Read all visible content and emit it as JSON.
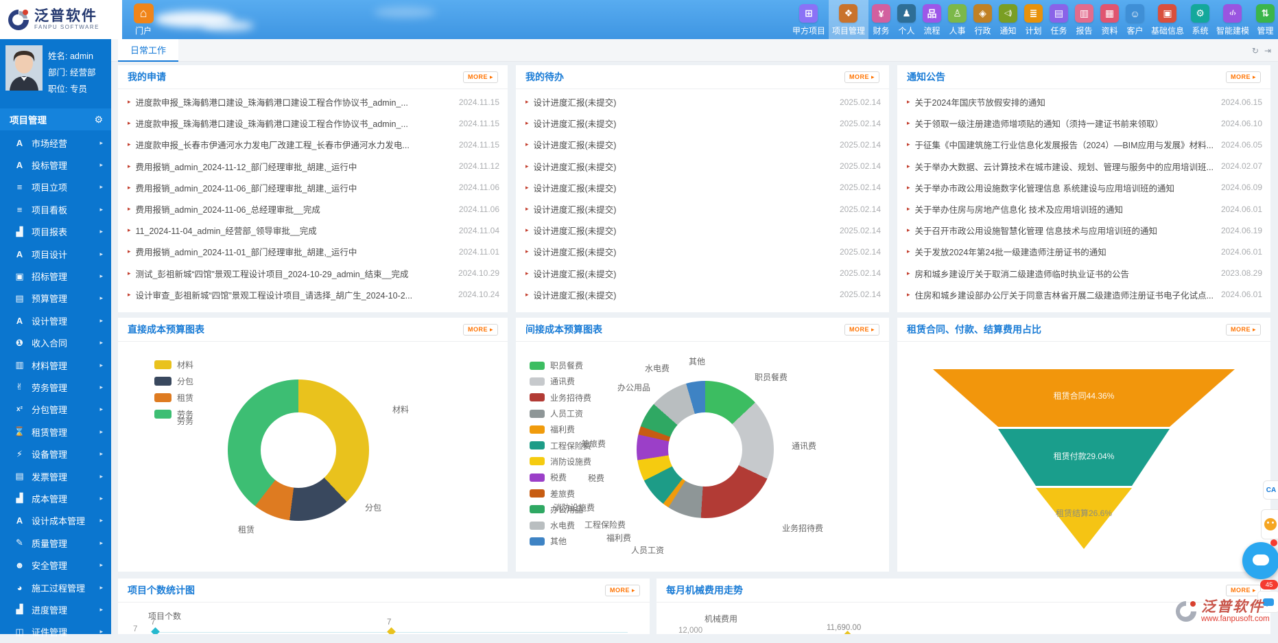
{
  "topbar": {
    "logo": {
      "brand": "泛普软件",
      "brand_sub": "FANPU SOFTWARE"
    },
    "portal": {
      "label": "门户"
    },
    "nav": [
      {
        "label": "甲方项目",
        "icon": "grid-projects-icon",
        "color": "#8B72F6",
        "active": false
      },
      {
        "label": "项目管理",
        "icon": "project-management-icon",
        "color": "#C9732C",
        "active": true
      },
      {
        "label": "财务",
        "icon": "finance-icon",
        "color": "#D2609F",
        "active": false
      },
      {
        "label": "个人",
        "icon": "personal-icon",
        "color": "#2E6E96",
        "active": false
      },
      {
        "label": "流程",
        "icon": "workflow-icon",
        "color": "#9D57E8",
        "active": false
      },
      {
        "label": "人事",
        "icon": "hr-icon",
        "color": "#7CB849",
        "active": false
      },
      {
        "label": "行政",
        "icon": "admin-affairs-icon",
        "color": "#C08125",
        "active": false
      },
      {
        "label": "通知",
        "icon": "notice-icon",
        "color": "#7A9E23",
        "active": false
      },
      {
        "label": "计划",
        "icon": "plan-icon",
        "color": "#E8920C",
        "active": false
      },
      {
        "label": "任务",
        "icon": "task-icon",
        "color": "#8A63E8",
        "active": false
      },
      {
        "label": "报告",
        "icon": "report-icon",
        "color": "#E26C8D",
        "active": false
      },
      {
        "label": "资料",
        "icon": "document-icon",
        "color": "#E05570",
        "active": false
      },
      {
        "label": "客户",
        "icon": "customer-icon",
        "color": "#3F8FD6",
        "active": false
      },
      {
        "label": "基础信息",
        "icon": "base-info-icon",
        "color": "#D94F3D",
        "active": false
      },
      {
        "label": "系统",
        "icon": "system-icon",
        "color": "#14A89B",
        "active": false
      },
      {
        "label": "智能建模",
        "icon": "modeling-icon",
        "color": "#9A55E0",
        "active": false
      },
      {
        "label": "管理",
        "icon": "manage-icon",
        "color": "#3BB54A",
        "active": false
      }
    ]
  },
  "user": {
    "name_label": "姓名: admin",
    "dept_label": "部门: 经营部",
    "title_label": "职位: 专员"
  },
  "sidebar": {
    "header": "项目管理",
    "items": [
      {
        "label": "市场经营",
        "icon": "market-icon"
      },
      {
        "label": "投标管理",
        "icon": "bid-icon"
      },
      {
        "label": "项目立项",
        "icon": "project-setup-icon"
      },
      {
        "label": "项目看板",
        "icon": "kanban-icon"
      },
      {
        "label": "项目报表",
        "icon": "report-chart-icon"
      },
      {
        "label": "项目设计",
        "icon": "design-icon"
      },
      {
        "label": "招标管理",
        "icon": "tender-icon"
      },
      {
        "label": "预算管理",
        "icon": "budget-icon"
      },
      {
        "label": "设计管理",
        "icon": "design-manage-icon"
      },
      {
        "label": "收入合同",
        "icon": "income-contract-icon"
      },
      {
        "label": "材料管理",
        "icon": "material-icon"
      },
      {
        "label": "劳务管理",
        "icon": "labor-icon"
      },
      {
        "label": "分包管理",
        "icon": "subcontract-icon"
      },
      {
        "label": "租赁管理",
        "icon": "lease-icon"
      },
      {
        "label": "设备管理",
        "icon": "equipment-icon"
      },
      {
        "label": "发票管理",
        "icon": "invoice-icon"
      },
      {
        "label": "成本管理",
        "icon": "cost-icon"
      },
      {
        "label": "设计成本管理",
        "icon": "design-cost-icon"
      },
      {
        "label": "质量管理",
        "icon": "quality-icon"
      },
      {
        "label": "安全管理",
        "icon": "safety-icon"
      },
      {
        "label": "施工过程管理",
        "icon": "construction-icon"
      },
      {
        "label": "进度管理",
        "icon": "progress-icon"
      },
      {
        "label": "证件管理",
        "icon": "certificate-icon"
      }
    ]
  },
  "tabs": {
    "active": "日常工作"
  },
  "ui": {
    "more_label": "MORE"
  },
  "panels": {
    "my_applications": {
      "title": "我的申请",
      "items": [
        {
          "text": "进度款申报_珠海鹤港口建设_珠海鹤港口建设工程合作协议书_admin_...",
          "date": "2024.11.15"
        },
        {
          "text": "进度款申报_珠海鹤港口建设_珠海鹤港口建设工程合作协议书_admin_...",
          "date": "2024.11.15"
        },
        {
          "text": "进度款申报_长春市伊通河水力发电厂改建工程_长春市伊通河水力发电...",
          "date": "2024.11.15"
        },
        {
          "text": "费用报销_admin_2024-11-12_部门经理审批_胡建,_运行中",
          "date": "2024.11.12"
        },
        {
          "text": "费用报销_admin_2024-11-06_部门经理审批_胡建,_运行中",
          "date": "2024.11.06"
        },
        {
          "text": "费用报销_admin_2024-11-06_总经理审批__完成",
          "date": "2024.11.06"
        },
        {
          "text": "11_2024-11-04_admin_经营部_领导审批__完成",
          "date": "2024.11.04"
        },
        {
          "text": "费用报销_admin_2024-11-01_部门经理审批_胡建,_运行中",
          "date": "2024.11.01"
        },
        {
          "text": "测试_彭祖新城“四馆”景观工程设计项目_2024-10-29_admin_结束__完成",
          "date": "2024.10.29"
        },
        {
          "text": "设计审查_彭祖新城“四馆”景观工程设计项目_请选择_胡广生_2024-10-2...",
          "date": "2024.10.24"
        }
      ]
    },
    "my_todos": {
      "title": "我的待办",
      "items": [
        {
          "text": "设计进度汇报(未提交)",
          "date": "2025.02.14"
        },
        {
          "text": "设计进度汇报(未提交)",
          "date": "2025.02.14"
        },
        {
          "text": "设计进度汇报(未提交)",
          "date": "2025.02.14"
        },
        {
          "text": "设计进度汇报(未提交)",
          "date": "2025.02.14"
        },
        {
          "text": "设计进度汇报(未提交)",
          "date": "2025.02.14"
        },
        {
          "text": "设计进度汇报(未提交)",
          "date": "2025.02.14"
        },
        {
          "text": "设计进度汇报(未提交)",
          "date": "2025.02.14"
        },
        {
          "text": "设计进度汇报(未提交)",
          "date": "2025.02.14"
        },
        {
          "text": "设计进度汇报(未提交)",
          "date": "2025.02.14"
        },
        {
          "text": "设计进度汇报(未提交)",
          "date": "2025.02.14"
        }
      ]
    },
    "notices": {
      "title": "通知公告",
      "items": [
        {
          "text": "关于2024年国庆节放假安排的通知",
          "date": "2024.06.15"
        },
        {
          "text": "关于领取一级注册建造师增项贴的通知（须持一建证书前来领取）",
          "date": "2024.06.10"
        },
        {
          "text": "于征集《中国建筑施工行业信息化发展报告（2024）—BIM应用与发展》材料...",
          "date": "2024.06.05"
        },
        {
          "text": "关于举办大数据、云计算技术在城市建设、规划、管理与服务中的应用培训班...",
          "date": "2024.02.07"
        },
        {
          "text": "关于举办市政公用设施数字化管理信息 系统建设与应用培训班的通知",
          "date": "2024.06.09"
        },
        {
          "text": "关于举办住房与房地产信息化 技术及应用培训班的通知",
          "date": "2024.06.01"
        },
        {
          "text": "关于召开市政公用设施智慧化管理 信息技术与应用培训班的通知",
          "date": "2024.06.19"
        },
        {
          "text": "关于发放2024年第24批一级建造师注册证书的通知",
          "date": "2024.06.01"
        },
        {
          "text": "房和城乡建设厅关于取消二级建造师临时执业证书的公告",
          "date": "2023.08.29"
        },
        {
          "text": "住房和城乡建设部办公厅关于同意吉林省开展二级建造师注册证书电子化试点...",
          "date": "2024.06.01"
        }
      ]
    }
  },
  "chart_data": [
    {
      "type": "pie",
      "donut": true,
      "title": "直接成本预算图表",
      "unit": "%",
      "legend_position": "top-left",
      "series": [
        {
          "name": "材料",
          "value": 38,
          "color": "#E9C21D"
        },
        {
          "name": "分包",
          "value": 14,
          "color": "#39485E"
        },
        {
          "name": "租赁",
          "value": 8.5,
          "color": "#DE7B21"
        },
        {
          "name": "劳务",
          "value": 39.5,
          "color": "#3DBE73"
        }
      ]
    },
    {
      "type": "pie",
      "donut": true,
      "title": "间接成本预算图表",
      "unit": "%",
      "legend_position": "left",
      "series": [
        {
          "name": "职员餐费",
          "value": 13,
          "color": "#3CBD61"
        },
        {
          "name": "通讯费",
          "value": 19,
          "color": "#C6C9CC"
        },
        {
          "name": "业务招待费",
          "value": 19,
          "color": "#B23B35"
        },
        {
          "name": "人员工资",
          "value": 8,
          "color": "#8E9697"
        },
        {
          "name": "福利费",
          "value": 1.5,
          "color": "#F09B0C"
        },
        {
          "name": "工程保险费",
          "value": 7,
          "color": "#1D9C87"
        },
        {
          "name": "消防设施费",
          "value": 5,
          "color": "#F5CB10"
        },
        {
          "name": "税费",
          "value": 6,
          "color": "#9B3FC8"
        },
        {
          "name": "差旅费",
          "value": 2,
          "color": "#C75C12"
        },
        {
          "name": "办公用品",
          "value": 6,
          "color": "#2FA863"
        },
        {
          "name": "水电费",
          "value": 9,
          "color": "#B9BEC0"
        },
        {
          "name": "其他",
          "value": 4.5,
          "color": "#3E83C4"
        }
      ]
    },
    {
      "type": "funnel",
      "title": "租赁合同、付款、结算费用占比",
      "stages": [
        {
          "name": "租赁合同",
          "value": 44.36,
          "label": "租赁合同44.36%",
          "color": "#F2960C"
        },
        {
          "name": "租赁付款",
          "value": 29.04,
          "label": "租赁付款29.04%",
          "color": "#1A9E8C"
        },
        {
          "name": "租赁结算",
          "value": 26.6,
          "label": "租赁结算26.6%",
          "color": "#F5C414"
        }
      ]
    },
    {
      "type": "line",
      "title": "项目个数统计图",
      "ylabel": "项目个数",
      "y_axis_ticks": [
        "7"
      ],
      "points": [
        {
          "value": 7,
          "label": "7",
          "marker_color": "#25B8CE"
        },
        {
          "value": 7,
          "label": "7",
          "marker_color": "#E9C21D"
        }
      ]
    },
    {
      "type": "line",
      "title": "每月机械费用走势",
      "ylabel": "机械费用",
      "y_axis_ticks": [
        "12,000"
      ],
      "data_labels": [
        "11,690.00"
      ],
      "marker_color": "#E9C21D"
    }
  ],
  "floating": {
    "ca_label": "CA",
    "badge_count": "45"
  },
  "watermark": {
    "brand": "泛普软件",
    "url": "www.fanpusoft.com"
  }
}
